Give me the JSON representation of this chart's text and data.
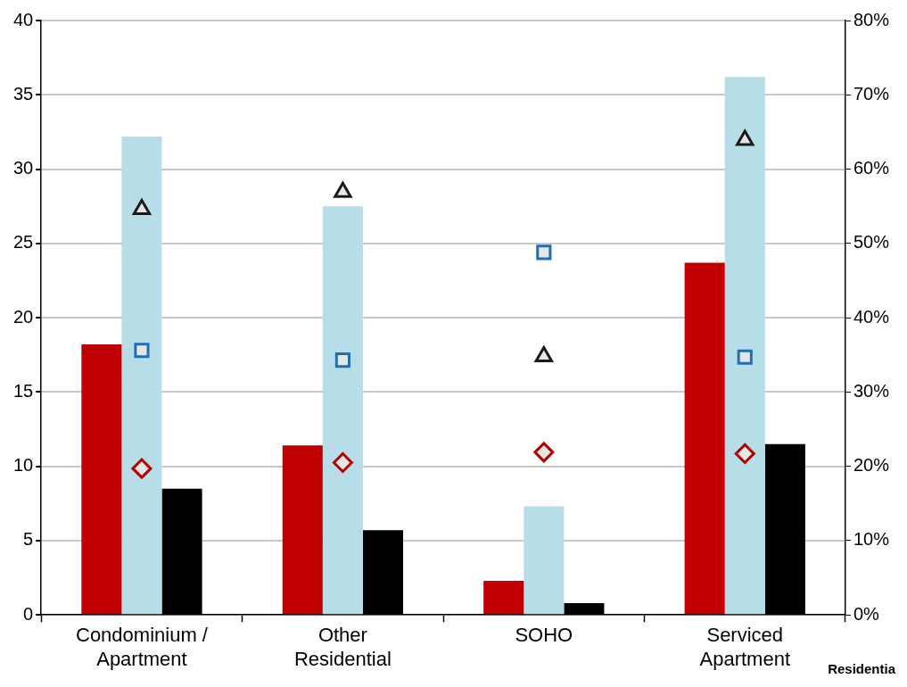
{
  "chart_data": {
    "type": "bar",
    "categories": [
      "Condominium / Apartment",
      "Other Residential",
      "SOHO",
      "Serviced Apartment"
    ],
    "series": [
      {
        "color": "#c00000",
        "values": [
          18.2,
          11.4,
          2.3,
          23.7
        ]
      },
      {
        "color": "#b7dde8",
        "values": [
          32.2,
          27.5,
          7.3,
          36.2
        ]
      },
      {
        "color": "#000000",
        "values": [
          8.5,
          5.7,
          0.8,
          11.5
        ]
      },
      {
        "type": "scatter",
        "axis": "y2",
        "marker": "triangle",
        "color": "#1a1a1a",
        "values": [
          54.6,
          56.9,
          34.8,
          63.9
        ]
      },
      {
        "type": "scatter",
        "axis": "y2",
        "marker": "square",
        "color": "#1f6fb5",
        "values": [
          35.6,
          34.3,
          48.8,
          34.7
        ]
      },
      {
        "type": "scatter",
        "axis": "y2",
        "marker": "diamond",
        "color": "#b00000",
        "values": [
          19.7,
          20.5,
          21.9,
          21.7
        ]
      }
    ],
    "ylim": [
      0,
      40
    ],
    "yticks": [
      0,
      5,
      10,
      15,
      20,
      25,
      30,
      35,
      40
    ],
    "y2lim": [
      0,
      80
    ],
    "y2ticks": [
      {
        "value": 0,
        "label": "0%"
      },
      {
        "value": 10,
        "label": "10%"
      },
      {
        "value": 20,
        "label": "20%"
      },
      {
        "value": 30,
        "label": "30%"
      },
      {
        "value": 40,
        "label": "40%"
      },
      {
        "value": 50,
        "label": "50%"
      },
      {
        "value": 60,
        "label": "60%"
      },
      {
        "value": 70,
        "label": "70%"
      },
      {
        "value": 80,
        "label": "80%"
      }
    ],
    "grid": "y",
    "legend": false,
    "annotations": [
      "Residentia"
    ]
  }
}
